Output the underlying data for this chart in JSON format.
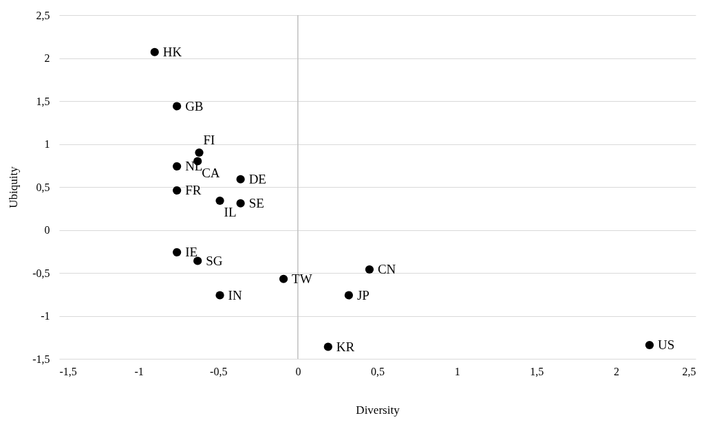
{
  "chart_data": {
    "type": "scatter",
    "xlabel": "Diversity",
    "ylabel": "Ubiquity",
    "x": [
      -0.9,
      -0.76,
      -0.62,
      -0.63,
      -0.76,
      -0.36,
      -0.76,
      -0.49,
      -0.36,
      -0.76,
      -0.63,
      -0.49,
      -0.09,
      0.45,
      0.32,
      0.19,
      2.21
    ],
    "values": [
      2.07,
      1.44,
      0.9,
      0.8,
      0.74,
      0.59,
      0.46,
      0.34,
      0.31,
      -0.26,
      -0.36,
      -0.76,
      -0.57,
      -0.46,
      -0.76,
      -1.36,
      -1.34
    ],
    "color": "#000000",
    "marker": "circle",
    "grid": "y",
    "xlim": [
      -1.5,
      2.5
    ],
    "xticks": [
      {
        "value": -1.5,
        "label": "-1,5"
      },
      -1,
      {
        "value": -0.5,
        "label": "-0,5"
      },
      0,
      {
        "value": 0.5,
        "label": "0,5"
      },
      1,
      {
        "value": 1.5,
        "label": "1,5"
      },
      2,
      {
        "value": 2.5,
        "label": "2,5"
      }
    ],
    "ylim": [
      -1.5,
      2.5
    ],
    "yticks": [
      {
        "value": -1.5,
        "label": "-1,5"
      },
      -1,
      {
        "value": -0.5,
        "label": "-0,5"
      },
      0,
      {
        "value": 0.5,
        "label": "0,5"
      },
      1,
      {
        "value": 1.5,
        "label": "1,5"
      },
      2,
      {
        "value": 2.5,
        "label": "2,5"
      }
    ],
    "ref_lines": [
      {
        "axis": "x",
        "value": 0,
        "color": "#bfbfbf"
      }
    ],
    "annotations": [
      {
        "text": "HK",
        "x": -0.9,
        "y": 2.07
      },
      {
        "text": "GB",
        "x": -0.76,
        "y": 1.44
      },
      {
        "text": "FI",
        "x": -0.62,
        "y": 0.9
      },
      {
        "text": "CA",
        "x": -0.63,
        "y": 0.8
      },
      {
        "text": "NL",
        "x": -0.76,
        "y": 0.74
      },
      {
        "text": "DE",
        "x": -0.36,
        "y": 0.59
      },
      {
        "text": "FR",
        "x": -0.76,
        "y": 0.46
      },
      {
        "text": "IL",
        "x": -0.49,
        "y": 0.34
      },
      {
        "text": "SE",
        "x": -0.36,
        "y": 0.31
      },
      {
        "text": "IE",
        "x": -0.76,
        "y": -0.26
      },
      {
        "text": "SG",
        "x": -0.63,
        "y": -0.36
      },
      {
        "text": "IN",
        "x": -0.49,
        "y": -0.76
      },
      {
        "text": "TW",
        "x": -0.09,
        "y": -0.57
      },
      {
        "text": "CN",
        "x": 0.45,
        "y": -0.46
      },
      {
        "text": "JP",
        "x": 0.32,
        "y": -0.76
      },
      {
        "text": "KR",
        "x": 0.19,
        "y": -1.36
      },
      {
        "text": "US",
        "x": 2.21,
        "y": -1.34
      }
    ]
  }
}
